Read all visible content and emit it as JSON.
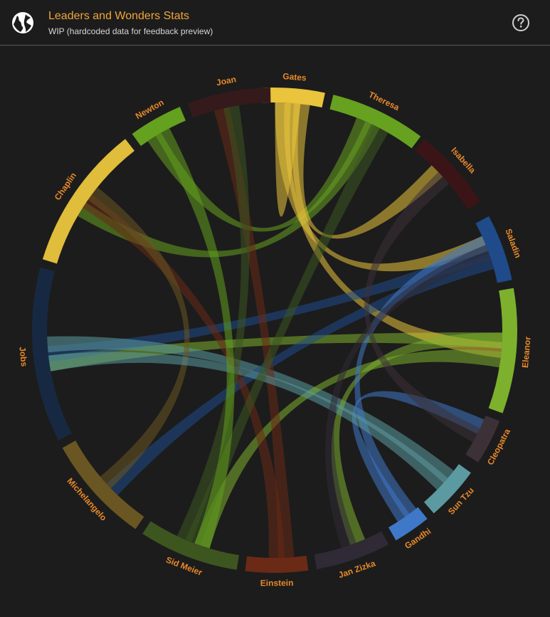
{
  "header": {
    "title": "Leaders and Wonders Stats",
    "subtitle": "WIP (hardcoded data for feedback preview)",
    "logo_icon": "globe-icon",
    "help_icon": "help-circle-icon"
  },
  "colors": {
    "accent": "#f0a53a",
    "background": "#1c1c1c",
    "label": "#e8892a"
  },
  "chart_data": {
    "type": "chord",
    "groups": [
      {
        "name": "Gates",
        "color": "#e9c43c"
      },
      {
        "name": "Theresa",
        "color": "#67a120"
      },
      {
        "name": "Isabella",
        "color": "#3a1417"
      },
      {
        "name": "Saladin",
        "color": "#1f4b8a"
      },
      {
        "name": "Eleanor",
        "color": "#7db12d"
      },
      {
        "name": "Cleopatra",
        "color": "#3d3138"
      },
      {
        "name": "Sun Tzu",
        "color": "#5b9aa0"
      },
      {
        "name": "Gandhi",
        "color": "#3f78c8"
      },
      {
        "name": "Jan Zizka",
        "color": "#2f2a35"
      },
      {
        "name": "Einstein",
        "color": "#6a2a15"
      },
      {
        "name": "Sid Meier",
        "color": "#3d5620"
      },
      {
        "name": "Michelangelo",
        "color": "#6a5622"
      },
      {
        "name": "Jobs",
        "color": "#172942"
      },
      {
        "name": "Chaplin",
        "color": "#e0bd3a"
      },
      {
        "name": "Newton",
        "color": "#63a11e"
      },
      {
        "name": "Joan",
        "color": "#351a1c"
      }
    ],
    "chords": [
      {
        "source": "Jobs",
        "target": "Eleanor",
        "color": "#7db12d"
      },
      {
        "source": "Newton",
        "target": "Theresa",
        "color": "#67a120"
      },
      {
        "source": "Chaplin",
        "target": "Theresa",
        "color": "#67a120"
      },
      {
        "source": "Gates",
        "target": "Gates",
        "color": "#e9c43c"
      },
      {
        "source": "Gates",
        "target": "Isabella",
        "color": "#e9c43c"
      },
      {
        "source": "Gates",
        "target": "Saladin",
        "color": "#e9c43c"
      },
      {
        "source": "Gates",
        "target": "Eleanor",
        "color": "#e9c43c"
      },
      {
        "source": "Jobs",
        "target": "Saladin",
        "color": "#1f4b8a"
      },
      {
        "source": "Jobs",
        "target": "Sun Tzu",
        "color": "#5b9aa0"
      },
      {
        "source": "Michelangelo",
        "target": "Saladin",
        "color": "#1f4b8a"
      },
      {
        "source": "Sid Meier",
        "target": "Eleanor",
        "color": "#7db12d"
      },
      {
        "source": "Einstein",
        "target": "Joan",
        "color": "#6a2a15"
      },
      {
        "source": "Chaplin",
        "target": "Einstein",
        "color": "#6a2a15"
      },
      {
        "source": "Chaplin",
        "target": "Michelangelo",
        "color": "#6a5622"
      },
      {
        "source": "Jan Zizka",
        "target": "Eleanor",
        "color": "#7db12d"
      },
      {
        "source": "Gandhi",
        "target": "Saladin",
        "color": "#3f78c8"
      },
      {
        "source": "Gandhi",
        "target": "Cleopatra",
        "color": "#3f78c8"
      },
      {
        "source": "Sun Tzu",
        "target": "Jobs",
        "color": "#5b9aa0"
      },
      {
        "source": "Cleopatra",
        "target": "Isabella",
        "color": "#3d3138"
      },
      {
        "source": "Sid Meier",
        "target": "Theresa",
        "color": "#3d5620"
      },
      {
        "source": "Joan",
        "target": "Sid Meier",
        "color": "#3d5620"
      },
      {
        "source": "Newton",
        "target": "Sid Meier",
        "color": "#63a11e"
      },
      {
        "source": "Jan Zizka",
        "target": "Saladin",
        "color": "#2f2a35"
      }
    ]
  }
}
